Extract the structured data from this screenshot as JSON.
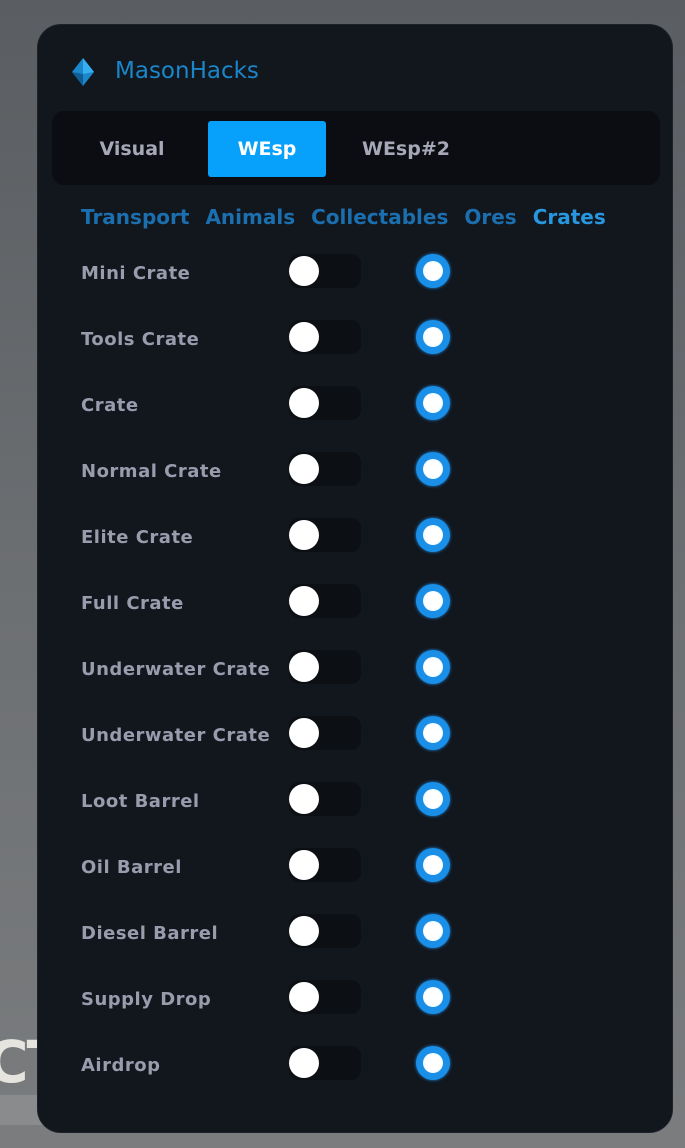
{
  "background": {
    "text": "CT"
  },
  "window": {
    "title": "MasonHacks",
    "logo_icon": "diamond-logo-icon",
    "accent": "#07a0fa"
  },
  "tabs": [
    {
      "label": "Visual",
      "active": false
    },
    {
      "label": "WEsp",
      "active": true
    },
    {
      "label": "WEsp#2",
      "active": false
    }
  ],
  "subtabs": [
    {
      "label": "Transport",
      "active": false
    },
    {
      "label": "Animals",
      "active": false
    },
    {
      "label": "Collectables",
      "active": false
    },
    {
      "label": "Ores",
      "active": false
    },
    {
      "label": "Crates",
      "active": true
    }
  ],
  "items": [
    {
      "label": "Mini Crate",
      "enabled": false,
      "radio_selected": true
    },
    {
      "label": "Tools Crate",
      "enabled": false,
      "radio_selected": true
    },
    {
      "label": "Crate",
      "enabled": false,
      "radio_selected": true
    },
    {
      "label": "Normal Crate",
      "enabled": false,
      "radio_selected": true
    },
    {
      "label": "Elite Crate",
      "enabled": false,
      "radio_selected": true
    },
    {
      "label": "Full Crate",
      "enabled": false,
      "radio_selected": true
    },
    {
      "label": "Underwater Crate",
      "enabled": false,
      "radio_selected": true
    },
    {
      "label": "Underwater Crate",
      "enabled": false,
      "radio_selected": true
    },
    {
      "label": "Loot Barrel",
      "enabled": false,
      "radio_selected": true
    },
    {
      "label": "Oil Barrel",
      "enabled": false,
      "radio_selected": true
    },
    {
      "label": "Diesel Barrel",
      "enabled": false,
      "radio_selected": true
    },
    {
      "label": "Supply Drop",
      "enabled": false,
      "radio_selected": true
    },
    {
      "label": "Airdrop",
      "enabled": false,
      "radio_selected": true
    }
  ]
}
